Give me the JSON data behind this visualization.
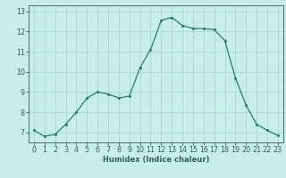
{
  "x": [
    0,
    1,
    2,
    3,
    4,
    5,
    6,
    7,
    8,
    9,
    10,
    11,
    12,
    13,
    14,
    15,
    16,
    17,
    18,
    19,
    20,
    21,
    22,
    23
  ],
  "y": [
    7.1,
    6.8,
    6.9,
    7.4,
    8.0,
    8.7,
    9.0,
    8.9,
    8.7,
    8.8,
    10.2,
    11.1,
    12.55,
    12.7,
    12.3,
    12.15,
    12.15,
    12.1,
    11.55,
    9.7,
    8.35,
    7.4,
    7.1,
    6.85
  ],
  "line_color": "#2d7a6a",
  "marker_color": "#2d7a6a",
  "bg_color": "#c8eeea",
  "grid_color": "#a8d8d4",
  "xlabel": "Humidex (Indice chaleur)",
  "xlim": [
    -0.5,
    23.5
  ],
  "ylim": [
    6.5,
    13.3
  ],
  "yticks": [
    7,
    8,
    9,
    10,
    11,
    12,
    13
  ],
  "xticks": [
    0,
    1,
    2,
    3,
    4,
    5,
    6,
    7,
    8,
    9,
    10,
    11,
    12,
    13,
    14,
    15,
    16,
    17,
    18,
    19,
    20,
    21,
    22,
    23
  ],
  "tick_color": "#2d6060",
  "xlabel_color": "#2d6060",
  "axis_color": "#2d6060",
  "label_fontsize": 6.0,
  "tick_fontsize": 5.8
}
